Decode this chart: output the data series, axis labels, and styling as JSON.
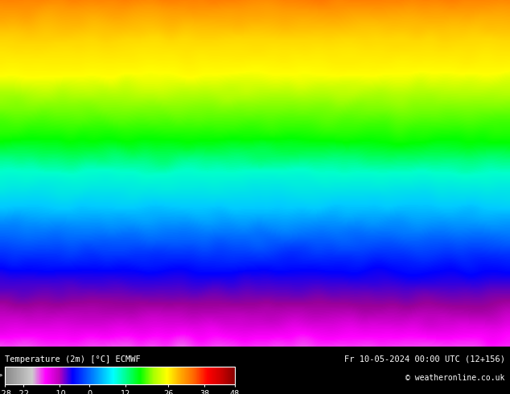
{
  "title": "",
  "colorbar_label": "Temperature (2m) [°C] ECMWF",
  "colorbar_ticks": [
    -28,
    -22,
    -10,
    0,
    12,
    26,
    38,
    48
  ],
  "colorbar_colors": [
    "#a0a0a0",
    "#c0c0c0",
    "#e0e0e0",
    "#ff00ff",
    "#cc00cc",
    "#990099",
    "#0000ff",
    "#0055ff",
    "#00aaff",
    "#00ccff",
    "#00ffff",
    "#00ff88",
    "#00ff00",
    "#88ff00",
    "#ffff00",
    "#ffcc00",
    "#ff8800",
    "#ff4400",
    "#ff0000",
    "#cc0000",
    "#880000"
  ],
  "date_text": "Fr 10-05-2024 00:00 UTC (12+156)",
  "copyright_text": "© weatheronline.co.uk",
  "background_color": "#000000",
  "map_bg_color": "#c8a040",
  "figure_bg": "#000000",
  "bottom_bar_color": "#000000",
  "text_color": "#ffffff",
  "colorbar_vmin": -28,
  "colorbar_vmax": 48,
  "fig_width": 6.34,
  "fig_height": 4.9
}
